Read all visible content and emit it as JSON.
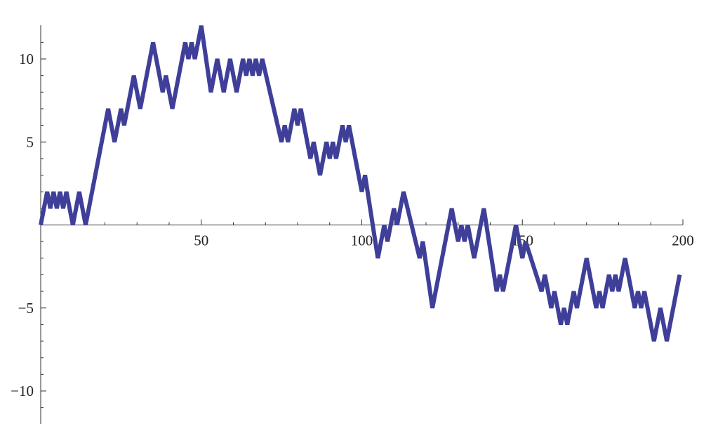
{
  "chart_data": {
    "type": "line",
    "title": "",
    "xlabel": "",
    "ylabel": "",
    "xlim": [
      0,
      200
    ],
    "ylim": [
      -12,
      12
    ],
    "grid": false,
    "legend": "none",
    "x_ticks": [
      {
        "value": 50,
        "label": "50"
      },
      {
        "value": 100,
        "label": "100"
      },
      {
        "value": 150,
        "label": "150"
      },
      {
        "value": 200,
        "label": "200"
      }
    ],
    "y_ticks": [
      {
        "value": 10,
        "label": "10"
      },
      {
        "value": 5,
        "label": "5"
      },
      {
        "value": -5,
        "label": "−5"
      },
      {
        "value": -10,
        "label": "−10"
      }
    ],
    "minor_x_step": 10,
    "minor_y_step": 1,
    "series": [
      {
        "color": "#3f3f9a",
        "points": [
          [
            0,
            0
          ],
          [
            2,
            2
          ],
          [
            3,
            1
          ],
          [
            4,
            2
          ],
          [
            5,
            1
          ],
          [
            6,
            2
          ],
          [
            7,
            1
          ],
          [
            8,
            2
          ],
          [
            9,
            1
          ],
          [
            10,
            0
          ],
          [
            12,
            2
          ],
          [
            14,
            0
          ],
          [
            21,
            7
          ],
          [
            23,
            5
          ],
          [
            25,
            7
          ],
          [
            26,
            6
          ],
          [
            29,
            9
          ],
          [
            31,
            7
          ],
          [
            35,
            11
          ],
          [
            38,
            8
          ],
          [
            39,
            9
          ],
          [
            41,
            7
          ],
          [
            45,
            11
          ],
          [
            46,
            10
          ],
          [
            47,
            11
          ],
          [
            48,
            10
          ],
          [
            50,
            12
          ],
          [
            53,
            8
          ],
          [
            55,
            10
          ],
          [
            57,
            8
          ],
          [
            59,
            10
          ],
          [
            61,
            8
          ],
          [
            63,
            10
          ],
          [
            64,
            9
          ],
          [
            65,
            10
          ],
          [
            66,
            9
          ],
          [
            67,
            10
          ],
          [
            68,
            9
          ],
          [
            69,
            10
          ],
          [
            75,
            5
          ],
          [
            76,
            6
          ],
          [
            77,
            5
          ],
          [
            79,
            7
          ],
          [
            80,
            6
          ],
          [
            81,
            7
          ],
          [
            84,
            4
          ],
          [
            85,
            5
          ],
          [
            87,
            3
          ],
          [
            89,
            5
          ],
          [
            90,
            4
          ],
          [
            91,
            5
          ],
          [
            92,
            4
          ],
          [
            94,
            6
          ],
          [
            95,
            5
          ],
          [
            96,
            6
          ],
          [
            100,
            2
          ],
          [
            101,
            3
          ],
          [
            105,
            -2
          ],
          [
            107,
            0
          ],
          [
            108,
            -1
          ],
          [
            110,
            1
          ],
          [
            111,
            0
          ],
          [
            113,
            2
          ],
          [
            118,
            -2
          ],
          [
            119,
            -1
          ],
          [
            122,
            -5
          ],
          [
            128,
            1
          ],
          [
            130,
            -1
          ],
          [
            131,
            0
          ],
          [
            132,
            -1
          ],
          [
            133,
            0
          ],
          [
            135,
            -2
          ],
          [
            138,
            1
          ],
          [
            142,
            -4
          ],
          [
            143,
            -3
          ],
          [
            144,
            -4
          ],
          [
            148,
            0
          ],
          [
            149,
            -1
          ],
          [
            150,
            -2
          ],
          [
            151,
            -1
          ],
          [
            156,
            -4
          ],
          [
            157,
            -3
          ],
          [
            159,
            -5
          ],
          [
            160,
            -4
          ],
          [
            162,
            -6
          ],
          [
            163,
            -5
          ],
          [
            164,
            -6
          ],
          [
            166,
            -4
          ],
          [
            167,
            -5
          ],
          [
            170,
            -2
          ],
          [
            173,
            -5
          ],
          [
            174,
            -4
          ],
          [
            175,
            -5
          ],
          [
            177,
            -3
          ],
          [
            178,
            -4
          ],
          [
            179,
            -3
          ],
          [
            180,
            -4
          ],
          [
            182,
            -2
          ],
          [
            185,
            -5
          ],
          [
            186,
            -4
          ],
          [
            187,
            -5
          ],
          [
            188,
            -4
          ],
          [
            191,
            -7
          ],
          [
            193,
            -5
          ],
          [
            195,
            -7
          ],
          [
            199,
            -3
          ]
        ]
      }
    ]
  }
}
